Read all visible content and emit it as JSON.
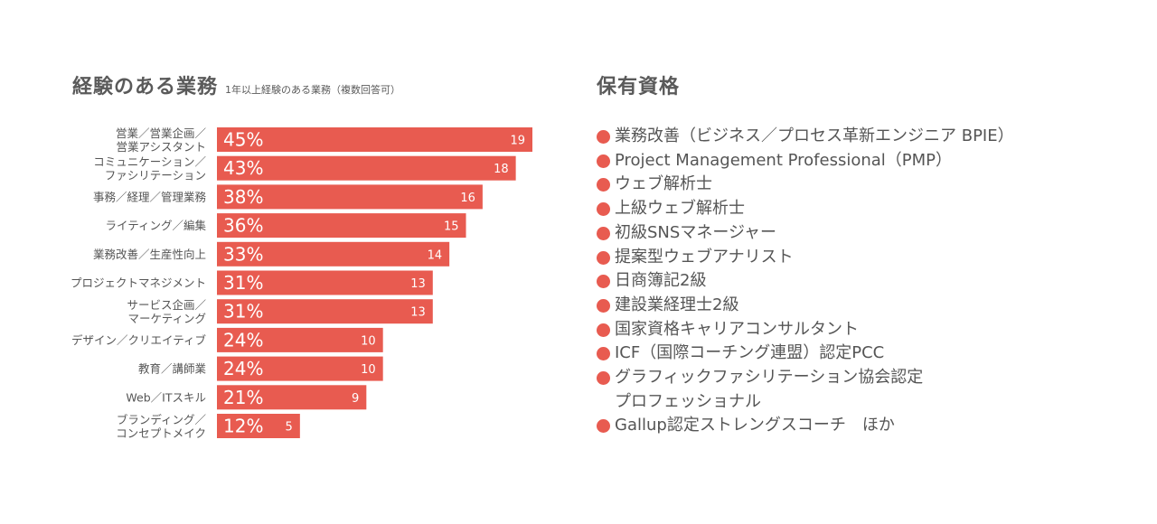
{
  "left": {
    "title": "経験のある業務",
    "subtitle": "1年以上経験のある業務（複数回答可）"
  },
  "right": {
    "title": "保有資格",
    "qualifications": [
      {
        "lines": [
          "業務改善（ビジネス／プロセス革新エンジニア BPIE）"
        ]
      },
      {
        "lines": [
          "Project Management Professional（PMP）"
        ]
      },
      {
        "lines": [
          "ウェブ解析士"
        ]
      },
      {
        "lines": [
          "上級ウェブ解析士"
        ]
      },
      {
        "lines": [
          "初級SNSマネージャー"
        ]
      },
      {
        "lines": [
          "提案型ウェブアナリスト"
        ]
      },
      {
        "lines": [
          "日商簿記2級"
        ]
      },
      {
        "lines": [
          "建設業経理士2級"
        ]
      },
      {
        "lines": [
          "国家資格キャリアコンサルタント"
        ]
      },
      {
        "lines": [
          "ICF（国際コーチング連盟）認定PCC"
        ]
      },
      {
        "lines": [
          "グラフィックファシリテーション協会認定",
          "プロフェッショナル"
        ]
      },
      {
        "lines": [
          "Gallup認定ストレングスコーチ　ほか"
        ]
      }
    ]
  },
  "colors": {
    "bar": "#e85b50",
    "text": "#555555",
    "bar_text": "#ffffff"
  },
  "chart_data": {
    "type": "bar",
    "orientation": "horizontal",
    "categories": [
      [
        "営業／営業企画／",
        "営業アシスタント"
      ],
      [
        "コミュニケーション／",
        "ファシリテーション"
      ],
      [
        "事務／経理／管理業務"
      ],
      [
        "ライティング／編集"
      ],
      [
        "業務改善／生産性向上"
      ],
      [
        "プロジェクトマネジメント"
      ],
      [
        "サービス企画／",
        "マーケティング"
      ],
      [
        "デザイン／クリエイティブ"
      ],
      [
        "教育／講師業"
      ],
      [
        "Web／ITスキル"
      ],
      [
        "ブランディング／",
        "コンセプトメイク"
      ]
    ],
    "percent_labels": [
      "45%",
      "43%",
      "38%",
      "36%",
      "33%",
      "31%",
      "31%",
      "24%",
      "24%",
      "21%",
      "12%"
    ],
    "values": [
      19,
      18,
      16,
      15,
      14,
      13,
      13,
      10,
      10,
      9,
      5
    ],
    "xlim": [
      0,
      19
    ]
  }
}
